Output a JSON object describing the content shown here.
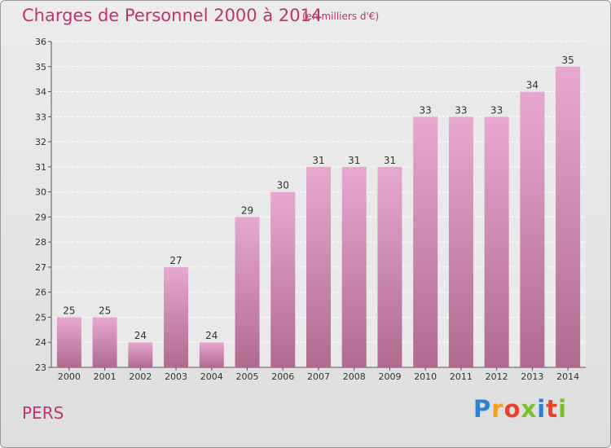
{
  "header": {
    "title": "Charges de Personnel 2000 à 2014",
    "subtitle": "(en milliers d'€)"
  },
  "footer": {
    "place": "PERS",
    "logo": "Proxiti",
    "logo_colors": [
      "#2e7fcf",
      "#f1a11e",
      "#e8412c",
      "#7bbf2a",
      "#2e7fcf",
      "#e8412c",
      "#7bbf2a"
    ]
  },
  "colors": {
    "bar_top": "#e7a8cf",
    "bar_bottom": "#b06a90",
    "text_accent": "#c0336e"
  },
  "chart_data": {
    "type": "bar",
    "title": "Charges de Personnel 2000 à 2014",
    "subtitle": "(en milliers d'€)",
    "categories": [
      "2000",
      "2001",
      "2002",
      "2003",
      "2004",
      "2005",
      "2006",
      "2007",
      "2008",
      "2009",
      "2010",
      "2011",
      "2012",
      "2013",
      "2014"
    ],
    "values": [
      25,
      25,
      24,
      27,
      24,
      29,
      30,
      31,
      31,
      31,
      33,
      33,
      33,
      34,
      35
    ],
    "ylim": [
      23,
      36
    ],
    "yticks": [
      23,
      24,
      25,
      26,
      27,
      28,
      29,
      30,
      31,
      32,
      33,
      34,
      35,
      36
    ],
    "grid": true,
    "data_labels": true
  }
}
